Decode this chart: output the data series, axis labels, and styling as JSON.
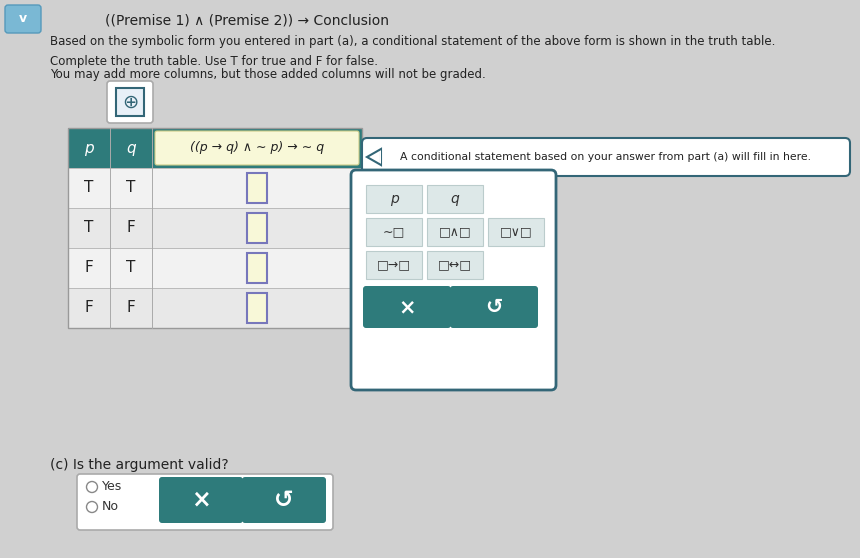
{
  "bg_color": "#d0d0d0",
  "title_line1": "((Premise 1) ∧ (Premise 2)) → Conclusion",
  "subtitle1": "Based on the symbolic form you entered in part (a), a conditional statement of the above form is shown in the truth table.",
  "subtitle2": "Complete the truth table. Use T for true and F for false.",
  "subtitle3": "You may add more columns, but those added columns will not be graded.",
  "table_header_bg": "#2e7b7b",
  "col1_label": "p",
  "col2_label": "q",
  "col3_label": "((p → q) ∧ ∼ p) → ∼ q",
  "col3_label_bg": "#f8f8d8",
  "rows": [
    [
      "T",
      "T"
    ],
    [
      "T",
      "F"
    ],
    [
      "F",
      "T"
    ],
    [
      "F",
      "F"
    ]
  ],
  "input_box_color": "#f8f8d8",
  "input_box_border": "#7777bb",
  "anno_text": "A conditional statement based on your answer from part (a) will fill in here.",
  "popup_border": "#336677",
  "popup_header_p": "p",
  "popup_header_q": "q",
  "popup_row1": [
    "∼□",
    "□∧□",
    "□∨□"
  ],
  "popup_row2": [
    "□→□",
    "□↔□"
  ],
  "button_bg": "#2e7b7b",
  "button_x": "×",
  "button_undo": "↺",
  "part_c_text": "(c) Is the argument valid?",
  "yes_label": "Yes",
  "no_label": "No",
  "add_btn_bg": "#f0f0f0",
  "add_btn_border": "#336677",
  "chevron": "‹"
}
